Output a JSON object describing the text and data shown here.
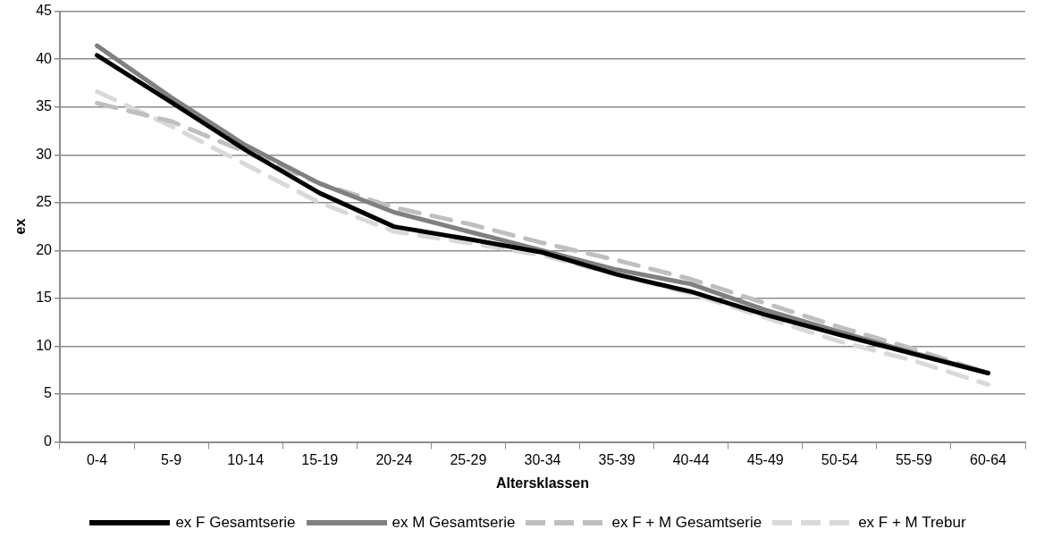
{
  "chart_data": {
    "type": "line",
    "xlabel": "Altersklassen",
    "ylabel": "ex",
    "categories": [
      "0-4",
      "5-9",
      "10-14",
      "15-19",
      "20-24",
      "25-29",
      "30-34",
      "35-39",
      "40-44",
      "45-49",
      "50-54",
      "55-59",
      "60-64"
    ],
    "series": [
      {
        "name": "ex F Gesamtserie",
        "color": "#000000",
        "line_style": "solid",
        "values": [
          40.4,
          35.5,
          30.5,
          26,
          22.5,
          21.2,
          19.8,
          17.5,
          15.7,
          13.3,
          11.2,
          9.2,
          7.2
        ]
      },
      {
        "name": "ex M Gesamtserie",
        "color": "#808080",
        "line_style": "solid",
        "values": [
          41.4,
          36,
          31,
          27,
          24,
          22,
          20,
          18,
          16.5,
          13.8,
          11.5,
          9.3,
          7.2
        ]
      },
      {
        "name": "ex F + M Gesamtserie",
        "color": "#bfbfbf",
        "line_style": "dashed",
        "values": [
          35.4,
          33.5,
          30.3,
          27,
          24.5,
          22.8,
          20.8,
          19,
          17,
          14.5,
          12,
          9.7,
          7.2
        ]
      },
      {
        "name": "ex F + M Trebur",
        "color": "#d9d9d9",
        "line_style": "dashed",
        "values": [
          36.6,
          33,
          29,
          25,
          22,
          20.8,
          19.5,
          17.5,
          15.5,
          13,
          10.5,
          8.5,
          6
        ]
      }
    ],
    "ylim": [
      0,
      45
    ],
    "yticks": [
      0,
      5,
      10,
      15,
      20,
      25,
      30,
      35,
      40,
      45
    ],
    "grid": "y",
    "legend": "bottom",
    "marker": "none"
  }
}
